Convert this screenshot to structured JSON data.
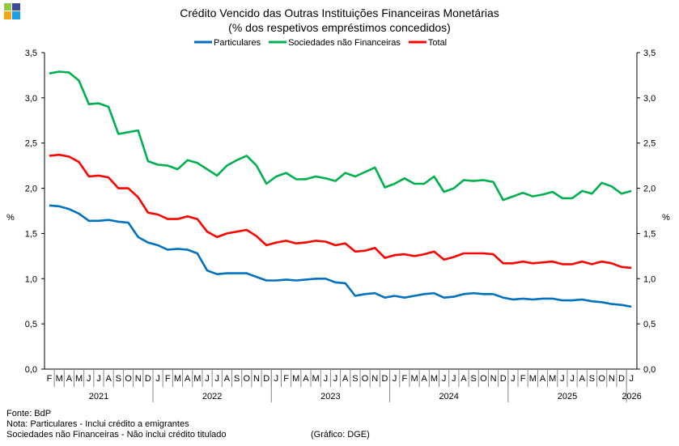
{
  "chart_data": {
    "type": "line",
    "title": "Crédito Vencido das Outras Instituições Financeiras Monetárias",
    "subtitle": "(% dos respetivos empréstimos concedidos)",
    "ylabel": "%",
    "ylabel_right": "%",
    "ylim": [
      0,
      3.5
    ],
    "yticks": [
      "0,0",
      "0,5",
      "1,0",
      "1,5",
      "2,0",
      "2,5",
      "3,0",
      "3,5"
    ],
    "legend_placement": "top-center",
    "month_labels": [
      "F",
      "M",
      "A",
      "M",
      "J",
      "J",
      "A",
      "S",
      "O",
      "N",
      "D",
      "J",
      "F",
      "M",
      "A",
      "M",
      "J",
      "J",
      "A",
      "S",
      "O",
      "N",
      "D",
      "J",
      "F",
      "M",
      "A",
      "M",
      "J",
      "J",
      "A",
      "S",
      "O",
      "N",
      "D",
      "J",
      "F",
      "M",
      "A",
      "M",
      "J",
      "J",
      "A",
      "S",
      "O",
      "N",
      "D",
      "J",
      "F",
      "M",
      "A",
      "M",
      "J",
      "J",
      "A",
      "S",
      "O",
      "N",
      "D",
      "J"
    ],
    "years": [
      {
        "label": "2021",
        "start": 0,
        "end": 10
      },
      {
        "label": "2022",
        "start": 11,
        "end": 22
      },
      {
        "label": "2023",
        "start": 23,
        "end": 34
      },
      {
        "label": "2024",
        "start": 35,
        "end": 46
      },
      {
        "label": "2025",
        "start": 47,
        "end": 58
      },
      {
        "label": "2026",
        "start": 59,
        "end": 59
      }
    ],
    "series": [
      {
        "name": "Particulares",
        "color": "#0070c0",
        "values": [
          1.81,
          1.8,
          1.77,
          1.72,
          1.64,
          1.64,
          1.65,
          1.63,
          1.62,
          1.46,
          1.4,
          1.37,
          1.32,
          1.33,
          1.32,
          1.28,
          1.09,
          1.05,
          1.06,
          1.06,
          1.06,
          1.02,
          0.98,
          0.98,
          0.99,
          0.98,
          0.99,
          1.0,
          1.0,
          0.96,
          0.95,
          0.81,
          0.83,
          0.84,
          0.79,
          0.81,
          0.79,
          0.81,
          0.83,
          0.84,
          0.79,
          0.8,
          0.83,
          0.84,
          0.83,
          0.83,
          0.79,
          0.77,
          0.78,
          0.77,
          0.78,
          0.78,
          0.76,
          0.76,
          0.77,
          0.75,
          0.74,
          0.72,
          0.71,
          0.69
        ]
      },
      {
        "name": "Sociedades não Financeiras",
        "color": "#00b050",
        "values": [
          3.27,
          3.29,
          3.28,
          3.19,
          2.93,
          2.94,
          2.9,
          2.6,
          2.62,
          2.64,
          2.3,
          2.26,
          2.25,
          2.21,
          2.31,
          2.28,
          2.21,
          2.14,
          2.25,
          2.31,
          2.36,
          2.25,
          2.05,
          2.13,
          2.17,
          2.1,
          2.1,
          2.13,
          2.11,
          2.08,
          2.17,
          2.13,
          2.18,
          2.23,
          2.01,
          2.05,
          2.11,
          2.05,
          2.05,
          2.13,
          1.96,
          2.0,
          2.09,
          2.08,
          2.09,
          2.07,
          1.87,
          1.91,
          1.95,
          1.91,
          1.93,
          1.96,
          1.89,
          1.89,
          1.97,
          1.94,
          2.06,
          2.02,
          1.94,
          1.97
        ]
      },
      {
        "name": "Total",
        "color": "#ff0000",
        "values": [
          2.36,
          2.37,
          2.35,
          2.29,
          2.13,
          2.14,
          2.12,
          2.0,
          2.0,
          1.9,
          1.73,
          1.71,
          1.66,
          1.66,
          1.69,
          1.66,
          1.52,
          1.46,
          1.5,
          1.52,
          1.54,
          1.47,
          1.37,
          1.4,
          1.42,
          1.39,
          1.4,
          1.42,
          1.41,
          1.37,
          1.39,
          1.3,
          1.31,
          1.34,
          1.23,
          1.26,
          1.27,
          1.25,
          1.27,
          1.3,
          1.21,
          1.24,
          1.28,
          1.28,
          1.28,
          1.27,
          1.17,
          1.17,
          1.19,
          1.17,
          1.18,
          1.19,
          1.16,
          1.16,
          1.19,
          1.16,
          1.19,
          1.17,
          1.13,
          1.12
        ]
      }
    ]
  },
  "footer": {
    "source": "Fonte: BdP",
    "note1": "Nota: Particulares - Inclui crédito a emigrantes",
    "note2": "Sociedades não Financeiras - Não inclui crédito titulado",
    "credit": "(Gráfico: DGE)"
  },
  "logo": {
    "colors": [
      "#92c83e",
      "#3b4a9c",
      "#f9a51a",
      "#1ba1e2"
    ]
  }
}
